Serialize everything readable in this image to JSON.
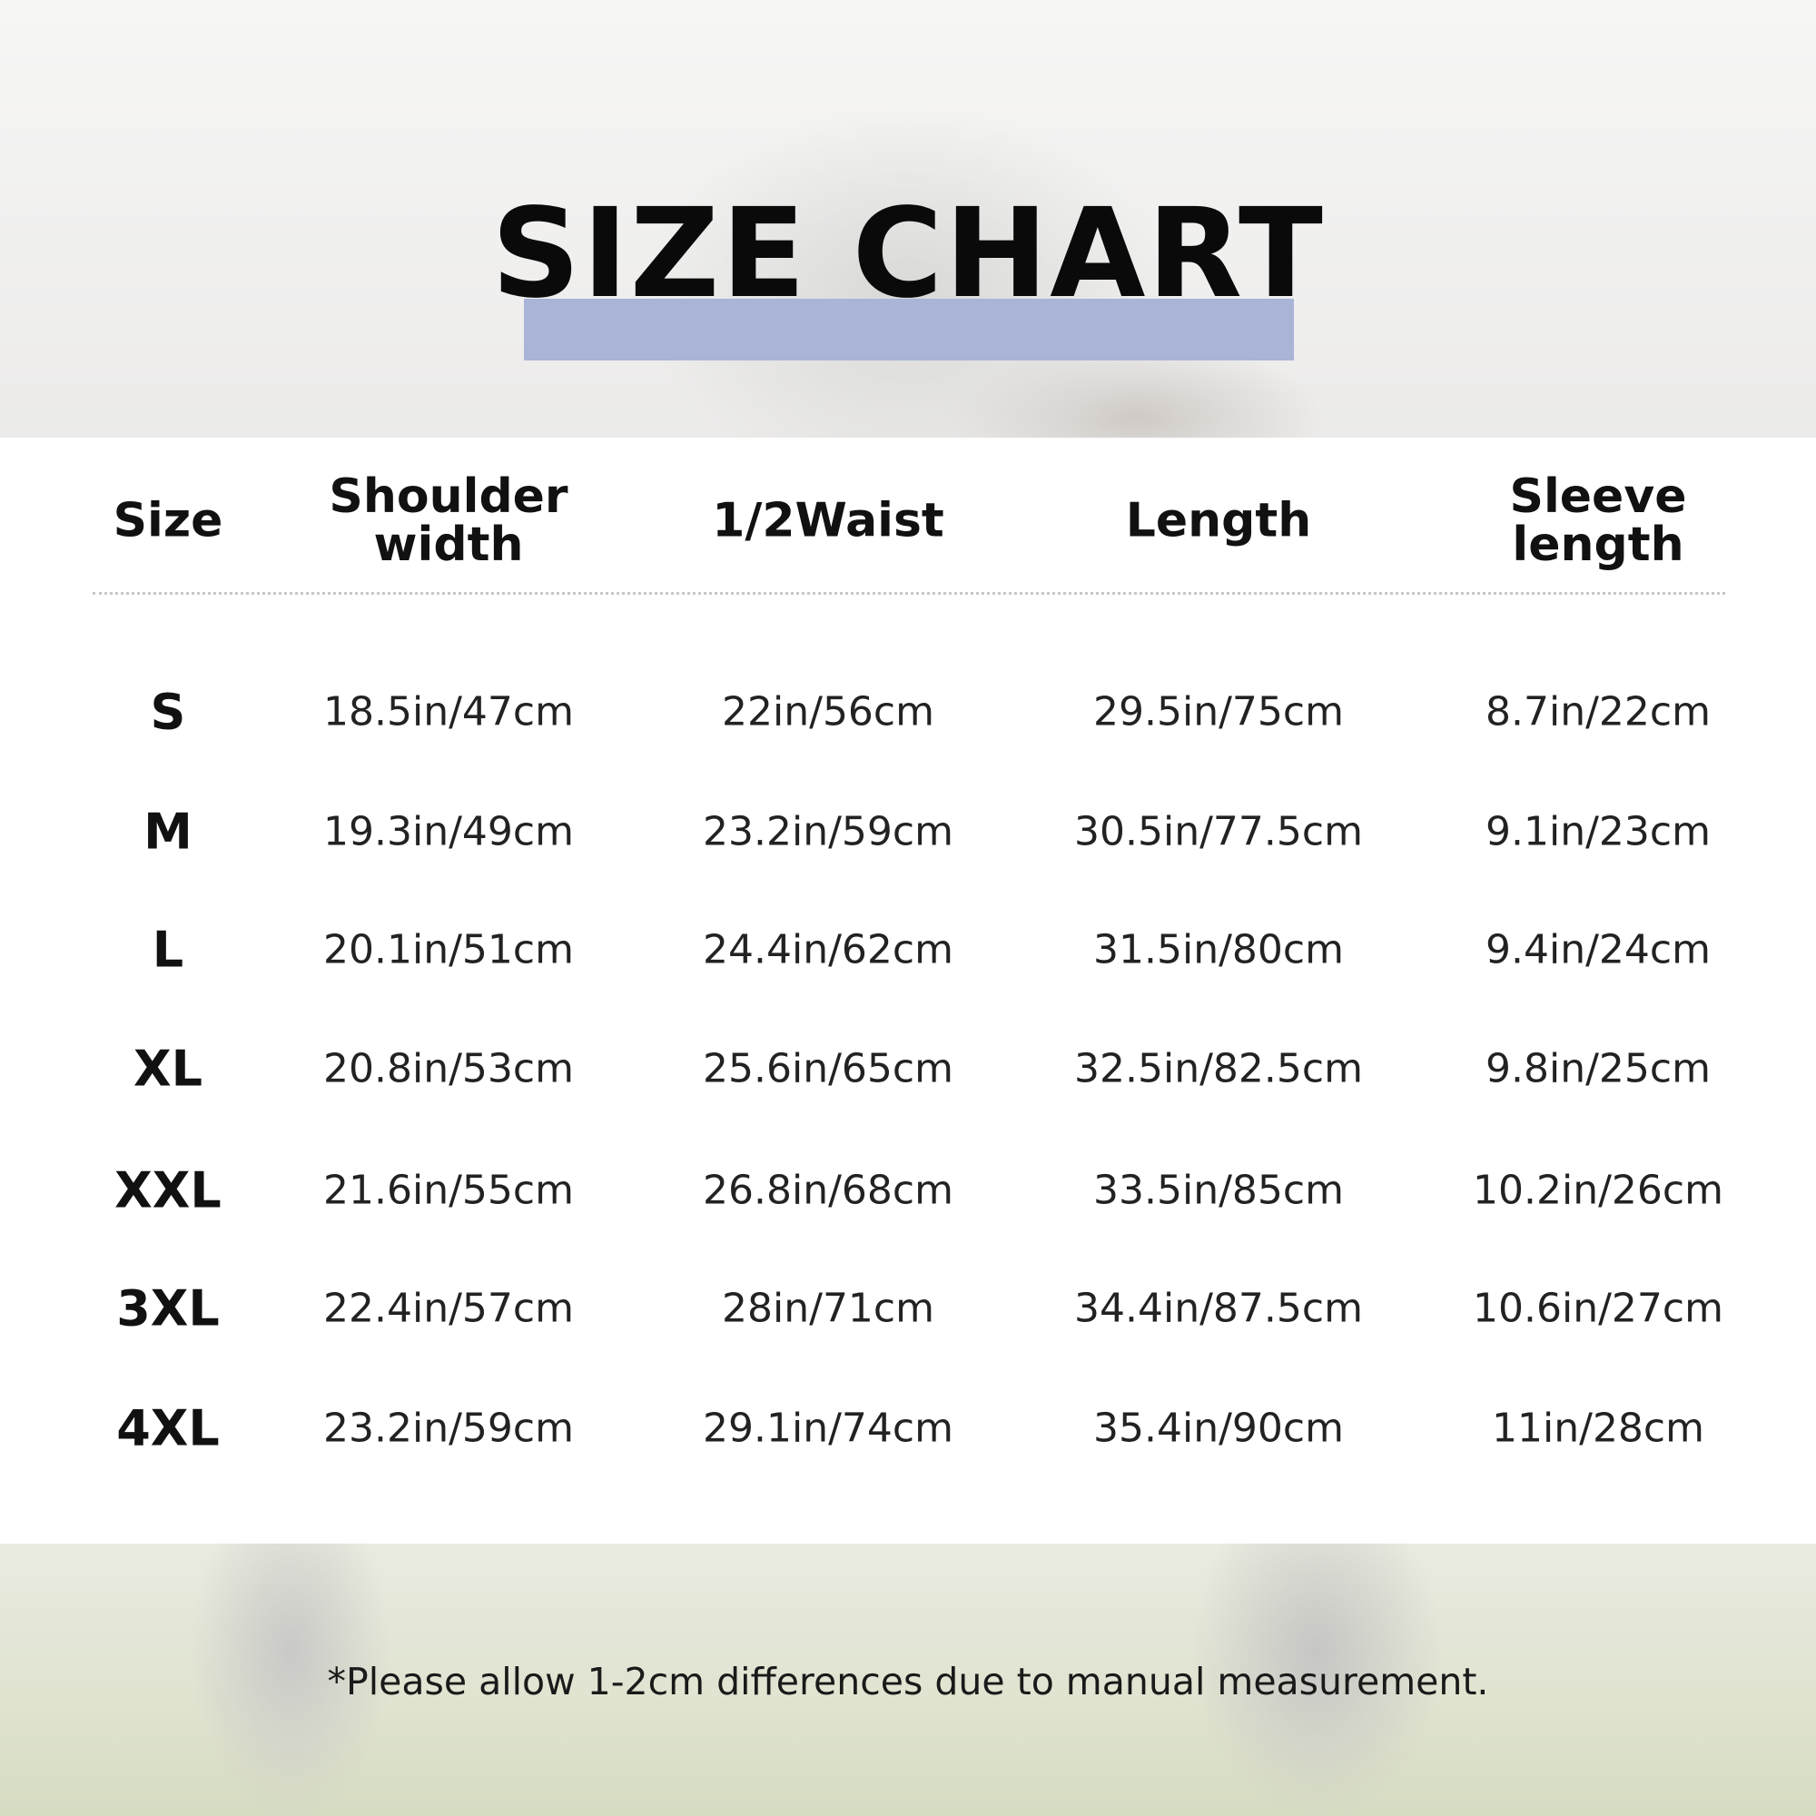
{
  "title": "SIZE CHART",
  "colors": {
    "title_bar": "#aab4d7",
    "panel": "#ffffff",
    "text": "#111111"
  },
  "table": {
    "headers": [
      "Size",
      "Shoulder\nwidth",
      "1/2Waist",
      "Length",
      "Sleeve\nlength"
    ],
    "rows": [
      [
        "S",
        "18.5in/47cm",
        "22in/56cm",
        "29.5in/75cm",
        "8.7in/22cm"
      ],
      [
        "M",
        "19.3in/49cm",
        "23.2in/59cm",
        "30.5in/77.5cm",
        "9.1in/23cm"
      ],
      [
        "L",
        "20.1in/51cm",
        "24.4in/62cm",
        "31.5in/80cm",
        "9.4in/24cm"
      ],
      [
        "XL",
        "20.8in/53cm",
        "25.6in/65cm",
        "32.5in/82.5cm",
        "9.8in/25cm"
      ],
      [
        "XXL",
        "21.6in/55cm",
        "26.8in/68cm",
        "33.5in/85cm",
        "10.2in/26cm"
      ],
      [
        "3XL",
        "22.4in/57cm",
        "28in/71cm",
        "34.4in/87.5cm",
        "10.6in/27cm"
      ],
      [
        "4XL",
        "23.2in/59cm",
        "29.1in/74cm",
        "35.4in/90cm",
        "11in/28cm"
      ]
    ]
  },
  "note": "*Please allow 1-2cm differences due to manual measurement."
}
